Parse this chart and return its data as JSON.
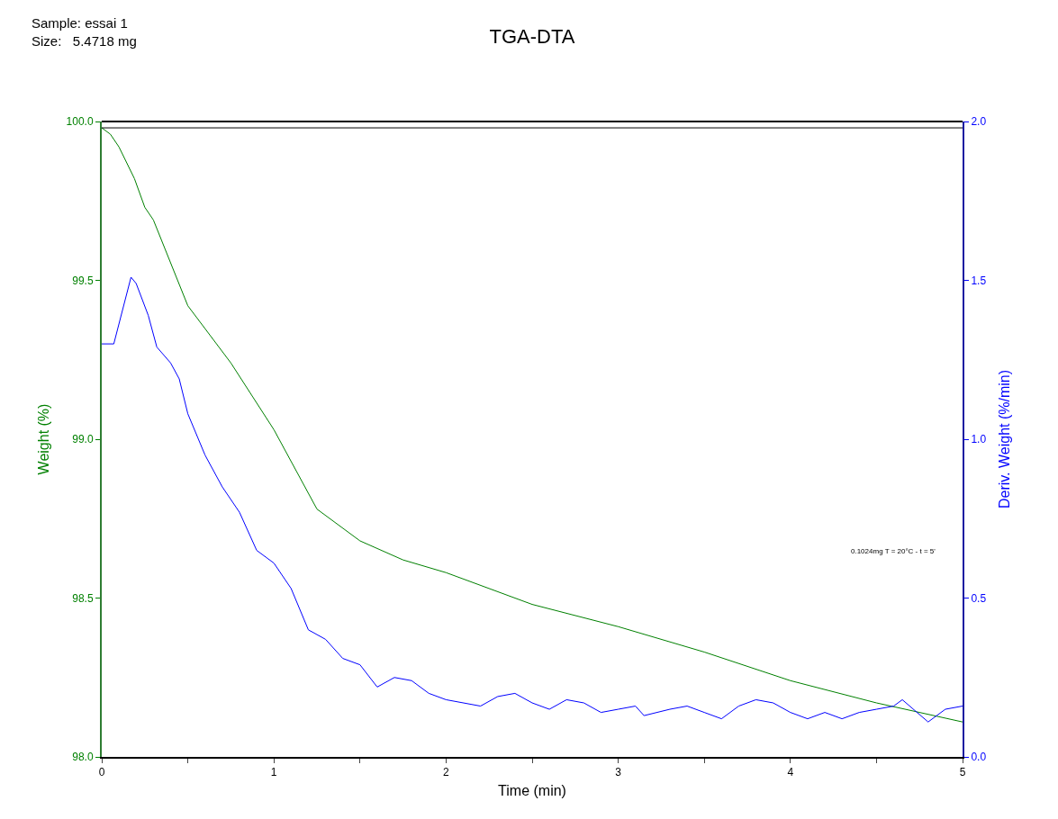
{
  "chart_data": {
    "type": "line",
    "title": "TGA-DTA",
    "subtitle": "Sample: essai 1\nSize:   5.4718 mg",
    "xlabel": "Time (min)",
    "ylabel": "Weight (%)",
    "y2label": "Deriv. Weight (%/min)",
    "annotations": [
      "0.1024mg T = 20°C - t = 5'"
    ],
    "series": [
      {
        "color": "#008000",
        "x": [
          0,
          0.05,
          0.1,
          0.19,
          0.25,
          0.3,
          0.5,
          0.75,
          1.0,
          1.25,
          1.5,
          1.75,
          2.0,
          2.5,
          3.0,
          3.5,
          4.0,
          4.5,
          5.0
        ],
        "values": [
          99.98,
          99.96,
          99.92,
          99.82,
          99.73,
          99.69,
          99.42,
          99.24,
          99.03,
          98.78,
          98.68,
          98.62,
          98.58,
          98.48,
          98.41,
          98.33,
          98.24,
          98.17,
          98.11
        ]
      },
      {
        "color": "#0000ff",
        "axis": "y2",
        "x": [
          0,
          0.07,
          0.17,
          0.2,
          0.27,
          0.32,
          0.4,
          0.45,
          0.5,
          0.6,
          0.7,
          0.8,
          0.9,
          1.0,
          1.1,
          1.2,
          1.3,
          1.4,
          1.5,
          1.6,
          1.7,
          1.8,
          1.9,
          2.0,
          2.2,
          2.3,
          2.4,
          2.5,
          2.6,
          2.7,
          2.8,
          2.9,
          3.0,
          3.1,
          3.15,
          3.3,
          3.4,
          3.5,
          3.6,
          3.7,
          3.8,
          3.9,
          4.0,
          4.1,
          4.2,
          4.3,
          4.4,
          4.5,
          4.6,
          4.65,
          4.8,
          4.9,
          5.0
        ],
        "values": [
          1.3,
          1.3,
          1.51,
          1.49,
          1.39,
          1.29,
          1.24,
          1.19,
          1.08,
          0.95,
          0.85,
          0.77,
          0.65,
          0.61,
          0.53,
          0.4,
          0.37,
          0.31,
          0.29,
          0.22,
          0.25,
          0.24,
          0.2,
          0.18,
          0.16,
          0.19,
          0.2,
          0.17,
          0.15,
          0.18,
          0.17,
          0.14,
          0.15,
          0.16,
          0.13,
          0.15,
          0.16,
          0.14,
          0.12,
          0.16,
          0.18,
          0.17,
          0.14,
          0.12,
          0.14,
          0.12,
          0.14,
          0.15,
          0.16,
          0.18,
          0.11,
          0.15,
          0.16
        ]
      }
    ],
    "xlim": [
      0,
      5
    ],
    "xticks": [
      0,
      {
        "value": 0.5,
        "label": null
      },
      1,
      {
        "value": 1.5,
        "label": null
      },
      2,
      {
        "value": 2.5,
        "label": null
      },
      3,
      {
        "value": 3.5,
        "label": null
      },
      4,
      {
        "value": 4.5,
        "label": null
      },
      5
    ],
    "ylim": [
      98,
      100
    ],
    "yticks": [
      {
        "value": 98,
        "label": "98.0"
      },
      98.5,
      {
        "value": 99,
        "label": "99.0"
      },
      99.5,
      {
        "value": 100,
        "label": "100.0"
      }
    ],
    "y2lim": [
      0,
      2
    ],
    "y2ticks": [
      {
        "value": 0,
        "label": "0.0"
      },
      0.5,
      {
        "value": 1,
        "label": "1.0"
      },
      1.5,
      {
        "value": 2,
        "label": "2.0"
      }
    ],
    "ref_lines": [
      {
        "axis": "y",
        "value": 99.98,
        "color": "#000000"
      }
    ]
  }
}
